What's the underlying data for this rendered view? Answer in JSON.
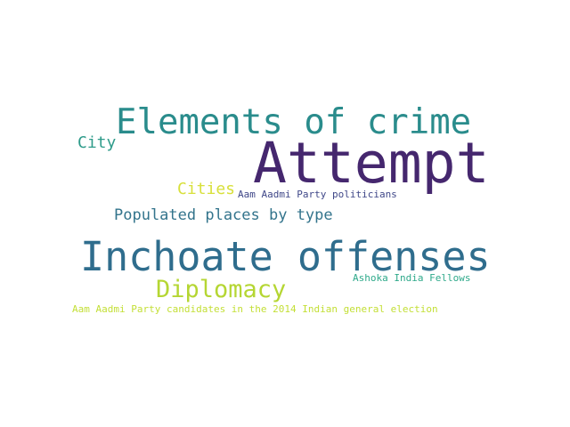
{
  "word_cloud": {
    "words": [
      {
        "text": "Elements of crime",
        "color": "#2a8c8c"
      },
      {
        "text": "Attempt",
        "color": "#45276e"
      },
      {
        "text": "City",
        "color": "#2e9b8a"
      },
      {
        "text": "Cities",
        "color": "#d8e03b"
      },
      {
        "text": "Aam Aadmi Party politicians",
        "color": "#3f4788"
      },
      {
        "text": "Populated places by type",
        "color": "#33748c"
      },
      {
        "text": "Inchoate offenses",
        "color": "#2f6d8d"
      },
      {
        "text": "Diplomacy",
        "color": "#b5d633"
      },
      {
        "text": "Ashoka India Fellows",
        "color": "#2ea98a"
      },
      {
        "text": "Aam Aadmi Party candidates in the 2014 Indian general election",
        "color": "#c3df35"
      }
    ]
  }
}
